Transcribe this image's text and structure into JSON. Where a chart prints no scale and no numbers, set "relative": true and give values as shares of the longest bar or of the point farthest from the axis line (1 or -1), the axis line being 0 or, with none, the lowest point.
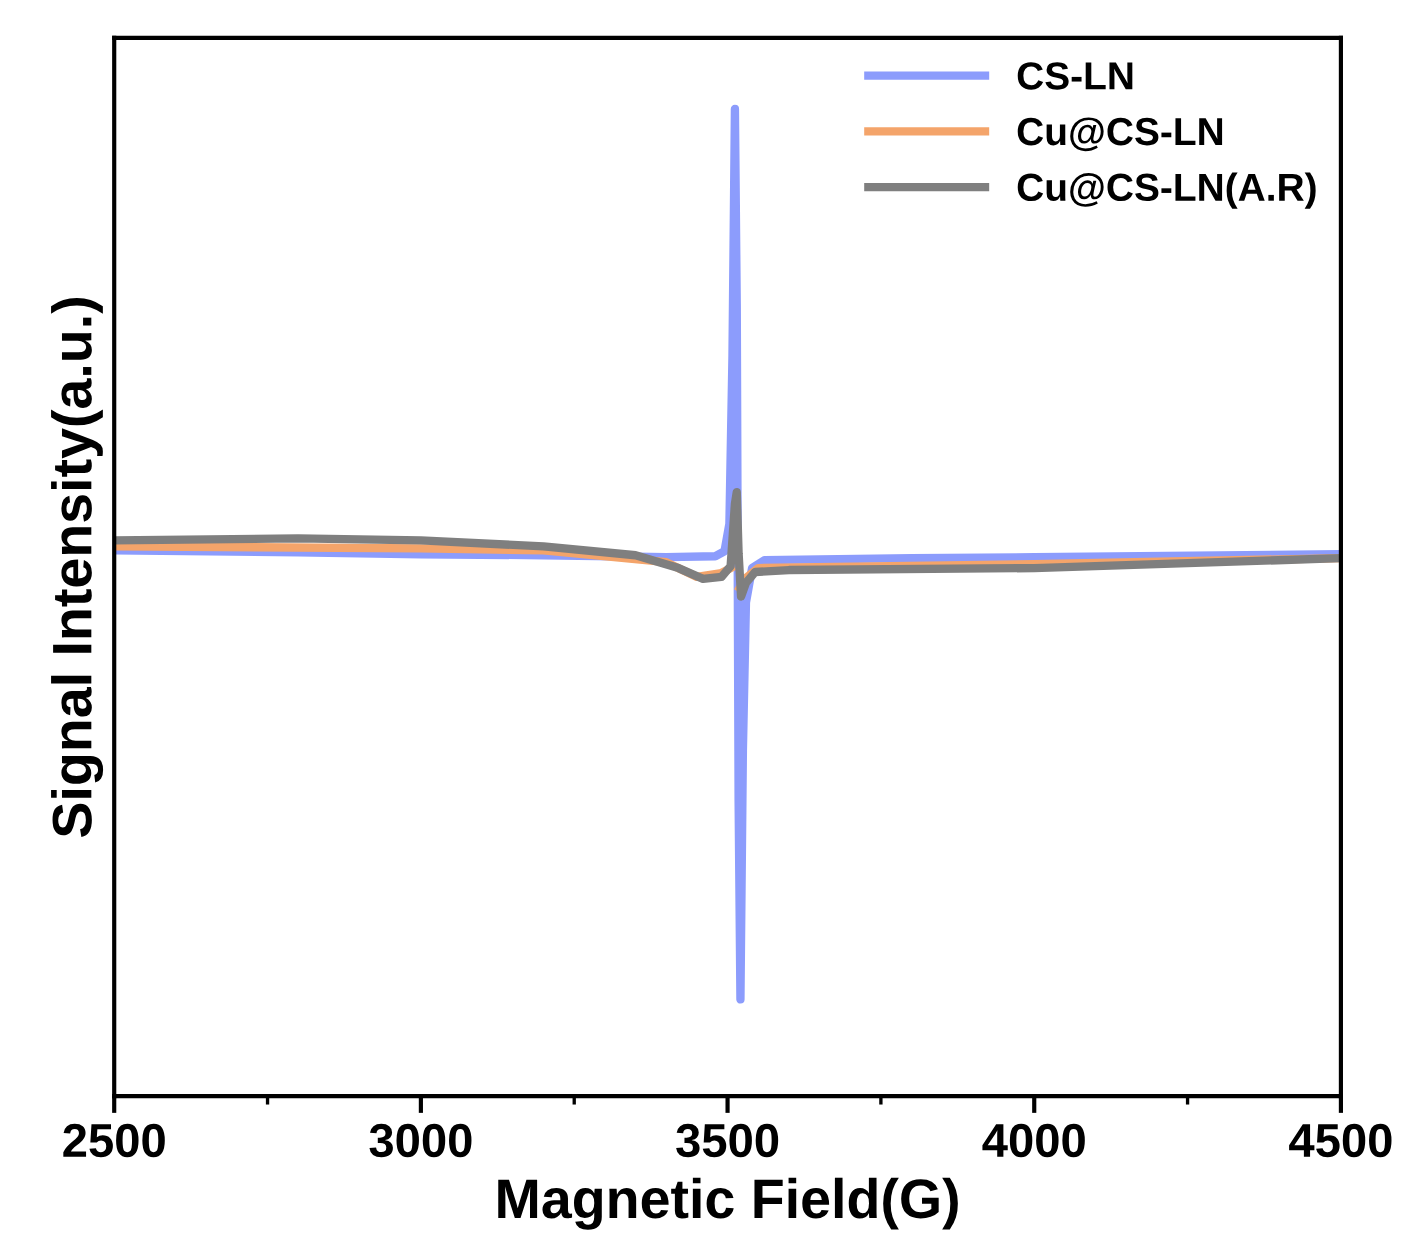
{
  "chart_data": {
    "type": "line",
    "relative": true,
    "xlabel": "Magnetic Field(G)",
    "ylabel": "Signal Intensity(a.u.)",
    "xlim": [
      2500,
      4500
    ],
    "xticks": [
      2500,
      3000,
      3500,
      4000,
      4500
    ],
    "tick_labels": "x",
    "legend": "top right",
    "grid": false,
    "series": [
      {
        "name": "CS-LN",
        "color": "#8c9cfc",
        "x": [
          2500,
          2800,
          3000,
          3200,
          3400,
          3480,
          3495,
          3503,
          3508,
          3512,
          3515,
          3518,
          3521,
          3525,
          3530,
          3540,
          3560,
          3800,
          4000,
          4500
        ],
        "values": [
          0.553,
          0.551,
          0.549,
          0.548,
          0.546,
          0.547,
          0.552,
          0.58,
          0.75,
          1.0,
          0.8,
          0.3,
          0.098,
          0.35,
          0.5,
          0.535,
          0.543,
          0.545,
          0.546,
          0.549
        ]
      },
      {
        "name": "Cu@CS-LN",
        "color": "#f4a46a",
        "x": [
          2500,
          3000,
          3200,
          3400,
          3450,
          3490,
          3505,
          3513,
          3516,
          3520,
          3530,
          3550,
          4000,
          4500
        ],
        "values": [
          0.557,
          0.555,
          0.553,
          0.541,
          0.526,
          0.53,
          0.535,
          null,
          null,
          0.515,
          0.525,
          0.535,
          0.539,
          0.545
        ]
      },
      {
        "name": "Cu@CS-LN(A.R)",
        "color": "#7f7f7f",
        "x": [
          2500,
          2800,
          3000,
          3200,
          3350,
          3420,
          3460,
          3490,
          3505,
          3512,
          3515,
          3518,
          3522,
          3530,
          3545,
          3600,
          4000,
          4500
        ],
        "values": [
          0.563,
          0.565,
          0.563,
          0.557,
          0.548,
          0.535,
          0.524,
          0.526,
          0.537,
          0.6,
          0.612,
          0.55,
          0.506,
          0.52,
          0.531,
          0.533,
          0.535,
          0.545
        ]
      }
    ]
  }
}
